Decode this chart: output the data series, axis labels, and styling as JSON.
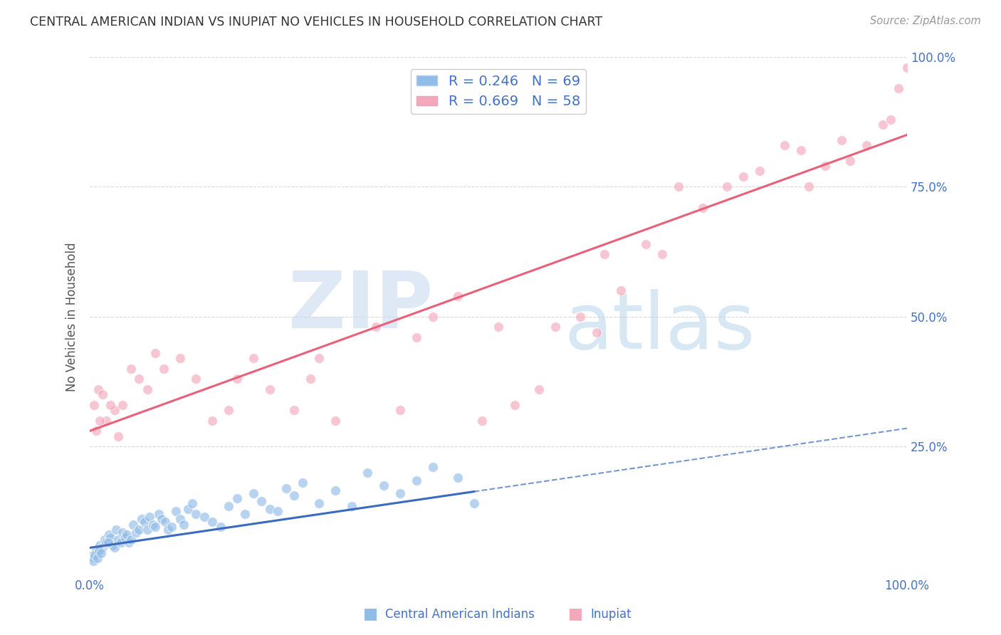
{
  "title": "CENTRAL AMERICAN INDIAN VS INUPIAT NO VEHICLES IN HOUSEHOLD CORRELATION CHART",
  "source": "Source: ZipAtlas.com",
  "ylabel": "No Vehicles in Household",
  "watermark": "ZIPatlas",
  "legend_blue_r": "R = 0.246",
  "legend_blue_n": "N = 69",
  "legend_pink_r": "R = 0.669",
  "legend_pink_n": "N = 58",
  "blue_color": "#92bce8",
  "pink_color": "#f4a8bc",
  "blue_line_color": "#3a6bbf",
  "pink_line_color": "#e8607a",
  "axis_label_color": "#4472c4",
  "title_color": "#333333",
  "watermark_color_zip": "#c5d8f0",
  "watermark_color_atlas": "#a8cce8",
  "grid_color": "#d0d0d0",
  "background_color": "#ffffff",
  "blue_scatter_x": [
    0.3,
    0.5,
    0.8,
    1.0,
    1.2,
    1.5,
    1.8,
    2.0,
    2.3,
    2.5,
    2.8,
    3.0,
    3.2,
    3.5,
    3.8,
    4.0,
    4.3,
    4.5,
    4.8,
    5.0,
    5.3,
    5.6,
    6.0,
    6.3,
    6.7,
    7.0,
    7.3,
    7.7,
    8.0,
    8.4,
    8.8,
    9.2,
    9.6,
    10.0,
    10.5,
    11.0,
    11.5,
    12.0,
    12.5,
    13.0,
    14.0,
    15.0,
    16.0,
    17.0,
    18.0,
    19.0,
    20.0,
    21.0,
    22.0,
    23.0,
    24.0,
    25.0,
    26.0,
    28.0,
    30.0,
    32.0,
    34.0,
    36.0,
    38.0,
    40.0,
    42.0,
    45.0,
    47.0,
    0.4,
    0.6,
    0.9,
    1.1,
    1.4,
    2.2
  ],
  "blue_scatter_y": [
    4.0,
    3.5,
    5.0,
    4.5,
    6.0,
    5.5,
    7.0,
    6.5,
    8.0,
    7.5,
    6.0,
    5.5,
    9.0,
    7.0,
    6.5,
    8.5,
    7.5,
    8.0,
    6.5,
    7.0,
    10.0,
    8.5,
    9.0,
    11.0,
    10.5,
    9.0,
    11.5,
    10.0,
    9.5,
    12.0,
    11.0,
    10.5,
    9.0,
    9.5,
    12.5,
    11.0,
    10.0,
    13.0,
    14.0,
    12.0,
    11.5,
    10.5,
    9.5,
    13.5,
    15.0,
    12.0,
    16.0,
    14.5,
    13.0,
    12.5,
    17.0,
    15.5,
    18.0,
    14.0,
    16.5,
    13.5,
    20.0,
    17.5,
    16.0,
    18.5,
    21.0,
    19.0,
    14.0,
    3.0,
    4.0,
    3.5,
    5.0,
    4.5,
    6.5
  ],
  "pink_scatter_x": [
    0.5,
    1.0,
    1.5,
    2.0,
    3.0,
    5.0,
    7.0,
    9.0,
    11.0,
    13.0,
    15.0,
    17.0,
    18.0,
    20.0,
    22.0,
    25.0,
    27.0,
    28.0,
    30.0,
    35.0,
    38.0,
    40.0,
    42.0,
    45.0,
    48.0,
    50.0,
    52.0,
    55.0,
    57.0,
    60.0,
    62.0,
    63.0,
    65.0,
    68.0,
    70.0,
    72.0,
    75.0,
    78.0,
    80.0,
    82.0,
    85.0,
    87.0,
    88.0,
    90.0,
    92.0,
    93.0,
    95.0,
    97.0,
    98.0,
    99.0,
    100.0,
    3.5,
    8.0,
    0.8,
    1.2,
    2.5,
    4.0,
    6.0
  ],
  "pink_scatter_y": [
    33.0,
    36.0,
    35.0,
    30.0,
    32.0,
    40.0,
    36.0,
    40.0,
    42.0,
    38.0,
    30.0,
    32.0,
    38.0,
    42.0,
    36.0,
    32.0,
    38.0,
    42.0,
    30.0,
    48.0,
    32.0,
    46.0,
    50.0,
    54.0,
    30.0,
    48.0,
    33.0,
    36.0,
    48.0,
    50.0,
    47.0,
    62.0,
    55.0,
    64.0,
    62.0,
    75.0,
    71.0,
    75.0,
    77.0,
    78.0,
    83.0,
    82.0,
    75.0,
    79.0,
    84.0,
    80.0,
    83.0,
    87.0,
    88.0,
    94.0,
    98.0,
    27.0,
    43.0,
    28.0,
    30.0,
    33.0,
    33.0,
    38.0
  ],
  "blue_line_slope": 0.23,
  "blue_line_intercept": 5.5,
  "blue_solid_end_x": 47.0,
  "pink_line_slope": 0.57,
  "pink_line_intercept": 28.0,
  "xlim": [
    0,
    100
  ],
  "ylim": [
    0,
    100
  ],
  "ytick_positions": [
    0,
    25,
    50,
    75,
    100
  ],
  "ytick_labels_right": [
    "",
    "25.0%",
    "50.0%",
    "75.0%",
    "100.0%"
  ],
  "xtick_positions": [
    0,
    25,
    50,
    75,
    100
  ],
  "xtick_labels": [
    "0.0%",
    "",
    "",
    "",
    "100.0%"
  ],
  "bottom_legend_blue": "Central American Indians",
  "bottom_legend_pink": "Inupiat"
}
